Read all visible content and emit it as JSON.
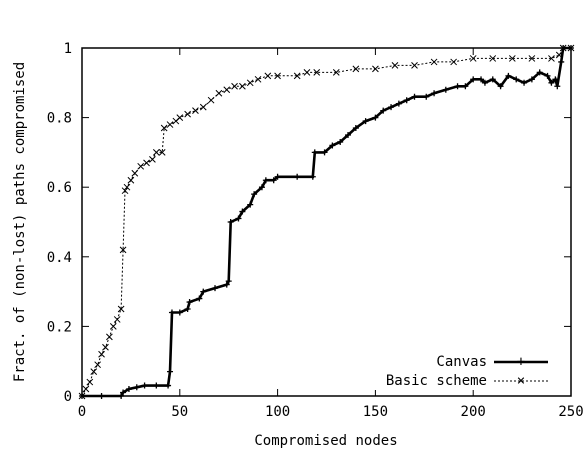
{
  "chart_data": {
    "type": "line",
    "title": "",
    "xlabel": "Compromised nodes",
    "ylabel": "Fract. of (non-lost) paths compromised",
    "xlim": [
      0,
      250
    ],
    "ylim": [
      0,
      1
    ],
    "x_ticks": [
      "0",
      "50",
      "100",
      "150",
      "200",
      "250"
    ],
    "y_ticks": [
      "0",
      "0.2",
      "0.4",
      "0.6",
      "0.8",
      "1"
    ],
    "grid": false,
    "legend_position": "bottom-right",
    "series": [
      {
        "name": "Canvas",
        "style": "solid-thick",
        "marker": "plus",
        "color": "#000000",
        "points": [
          [
            0,
            0
          ],
          [
            10,
            0
          ],
          [
            20,
            0
          ],
          [
            21,
            0.01
          ],
          [
            24,
            0.02
          ],
          [
            28,
            0.025
          ],
          [
            32,
            0.03
          ],
          [
            38,
            0.03
          ],
          [
            44,
            0.03
          ],
          [
            45,
            0.07
          ],
          [
            46,
            0.24
          ],
          [
            50,
            0.24
          ],
          [
            54,
            0.25
          ],
          [
            55,
            0.27
          ],
          [
            60,
            0.28
          ],
          [
            62,
            0.3
          ],
          [
            68,
            0.31
          ],
          [
            74,
            0.32
          ],
          [
            75,
            0.33
          ],
          [
            76,
            0.5
          ],
          [
            80,
            0.51
          ],
          [
            82,
            0.53
          ],
          [
            86,
            0.55
          ],
          [
            88,
            0.58
          ],
          [
            92,
            0.6
          ],
          [
            94,
            0.62
          ],
          [
            98,
            0.62
          ],
          [
            100,
            0.63
          ],
          [
            110,
            0.63
          ],
          [
            118,
            0.63
          ],
          [
            119,
            0.7
          ],
          [
            124,
            0.7
          ],
          [
            128,
            0.72
          ],
          [
            132,
            0.73
          ],
          [
            136,
            0.75
          ],
          [
            140,
            0.77
          ],
          [
            145,
            0.79
          ],
          [
            150,
            0.8
          ],
          [
            154,
            0.82
          ],
          [
            158,
            0.83
          ],
          [
            162,
            0.84
          ],
          [
            166,
            0.85
          ],
          [
            170,
            0.86
          ],
          [
            176,
            0.86
          ],
          [
            180,
            0.87
          ],
          [
            186,
            0.88
          ],
          [
            192,
            0.89
          ],
          [
            196,
            0.89
          ],
          [
            200,
            0.91
          ],
          [
            204,
            0.91
          ],
          [
            206,
            0.9
          ],
          [
            210,
            0.91
          ],
          [
            214,
            0.89
          ],
          [
            218,
            0.92
          ],
          [
            222,
            0.91
          ],
          [
            226,
            0.9
          ],
          [
            230,
            0.91
          ],
          [
            234,
            0.93
          ],
          [
            238,
            0.92
          ],
          [
            240,
            0.9
          ],
          [
            242,
            0.91
          ],
          [
            243,
            0.89
          ],
          [
            245,
            0.96
          ],
          [
            246,
            1.0
          ],
          [
            250,
            1.0
          ]
        ]
      },
      {
        "name": "Basic scheme",
        "style": "dotted",
        "marker": "x",
        "color": "#000000",
        "points": [
          [
            0,
            0.0
          ],
          [
            2,
            0.02
          ],
          [
            4,
            0.04
          ],
          [
            6,
            0.07
          ],
          [
            8,
            0.09
          ],
          [
            10,
            0.12
          ],
          [
            12,
            0.14
          ],
          [
            14,
            0.17
          ],
          [
            16,
            0.2
          ],
          [
            18,
            0.22
          ],
          [
            20,
            0.25
          ],
          [
            21,
            0.42
          ],
          [
            22,
            0.59
          ],
          [
            23,
            0.6
          ],
          [
            25,
            0.62
          ],
          [
            27,
            0.64
          ],
          [
            30,
            0.66
          ],
          [
            33,
            0.67
          ],
          [
            36,
            0.68
          ],
          [
            38,
            0.7
          ],
          [
            41,
            0.7
          ],
          [
            42,
            0.77
          ],
          [
            45,
            0.78
          ],
          [
            48,
            0.79
          ],
          [
            50,
            0.8
          ],
          [
            54,
            0.81
          ],
          [
            58,
            0.82
          ],
          [
            62,
            0.83
          ],
          [
            66,
            0.85
          ],
          [
            70,
            0.87
          ],
          [
            74,
            0.88
          ],
          [
            78,
            0.89
          ],
          [
            82,
            0.89
          ],
          [
            86,
            0.9
          ],
          [
            90,
            0.91
          ],
          [
            95,
            0.92
          ],
          [
            100,
            0.92
          ],
          [
            110,
            0.92
          ],
          [
            115,
            0.93
          ],
          [
            120,
            0.93
          ],
          [
            130,
            0.93
          ],
          [
            140,
            0.94
          ],
          [
            150,
            0.94
          ],
          [
            160,
            0.95
          ],
          [
            170,
            0.95
          ],
          [
            180,
            0.96
          ],
          [
            190,
            0.96
          ],
          [
            200,
            0.97
          ],
          [
            210,
            0.97
          ],
          [
            220,
            0.97
          ],
          [
            230,
            0.97
          ],
          [
            240,
            0.97
          ],
          [
            244,
            0.98
          ],
          [
            246,
            1.0
          ],
          [
            250,
            1.0
          ]
        ]
      }
    ]
  }
}
